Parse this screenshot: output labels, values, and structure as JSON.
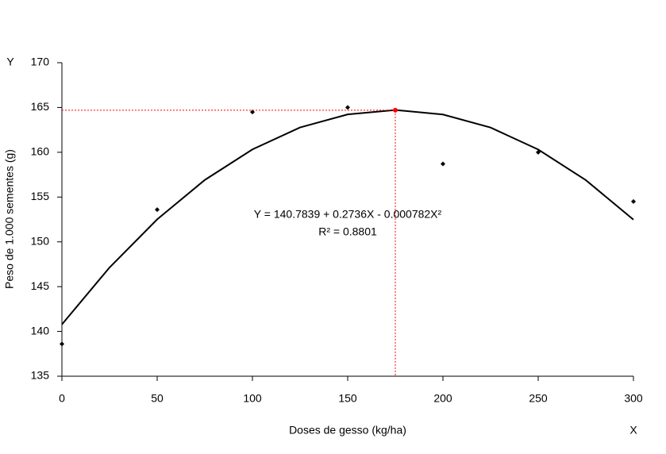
{
  "chart_data": {
    "type": "scatter",
    "x_label": "Doses de gesso (kg/ha)",
    "y_label": "Peso de 1.000 sementes (g)",
    "x_corner_label": "X",
    "y_corner_label": "Y",
    "annotations": [
      "Y = 140.7839 + 0.2736X - 0.000782X²",
      "R² = 0.8801"
    ],
    "xlim": [
      0,
      300
    ],
    "xticks": [
      0,
      50,
      100,
      150,
      200,
      250,
      300
    ],
    "ylim": [
      135,
      170
    ],
    "yticks": [
      135,
      140,
      145,
      150,
      155,
      160,
      165,
      170
    ],
    "series": [
      {
        "type": "scatter",
        "color": "#000000",
        "x": [
          0,
          50,
          100,
          150,
          200,
          250,
          300
        ],
        "values": [
          138.6,
          153.6,
          164.5,
          165.0,
          158.7,
          160.0,
          154.5
        ]
      },
      {
        "type": "line",
        "color": "#000000",
        "x": [
          0,
          25,
          50,
          75,
          100,
          125,
          150,
          175,
          200,
          225,
          250,
          275,
          300
        ],
        "values": [
          140.78,
          147.14,
          152.51,
          156.91,
          160.32,
          162.77,
          164.23,
          164.72,
          164.22,
          162.76,
          160.31,
          156.89,
          152.48
        ]
      },
      {
        "type": "scatter",
        "color": "#ff0000",
        "guides": true,
        "x": [
          175
        ],
        "values": [
          164.7
        ]
      }
    ]
  }
}
